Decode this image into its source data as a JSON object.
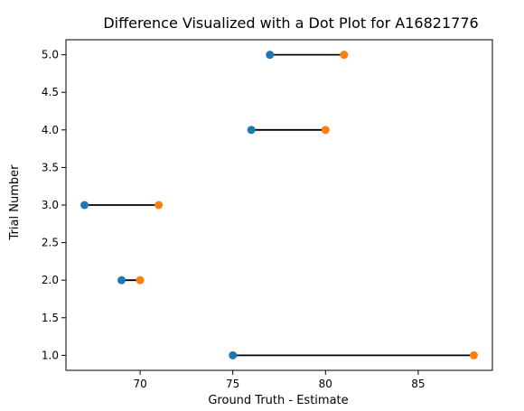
{
  "chart_data": {
    "type": "scatter",
    "title": "Difference Visualized with a Dot Plot for A16821776",
    "xlabel": "Ground Truth - Estimate",
    "ylabel": "Trial Number",
    "xlim": [
      66.0,
      89.0
    ],
    "ylim": [
      0.8,
      5.2
    ],
    "xticks": [
      70,
      75,
      80,
      85
    ],
    "yticks": [
      1.0,
      1.5,
      2.0,
      2.5,
      3.0,
      3.5,
      4.0,
      4.5,
      5.0
    ],
    "xtick_labels": [
      "70",
      "75",
      "80",
      "85"
    ],
    "ytick_labels": [
      "1.0",
      "1.5",
      "2.0",
      "2.5",
      "3.0",
      "3.5",
      "4.0",
      "4.5",
      "5.0"
    ],
    "grid": false,
    "connector_color": "#000000",
    "series": [
      {
        "color": "#1f77b4",
        "points": [
          {
            "x": 75,
            "y": 1
          },
          {
            "x": 69,
            "y": 2
          },
          {
            "x": 67,
            "y": 3
          },
          {
            "x": 76,
            "y": 4
          },
          {
            "x": 77,
            "y": 5
          }
        ]
      },
      {
        "color": "#ff7f0e",
        "points": [
          {
            "x": 88,
            "y": 1
          },
          {
            "x": 70,
            "y": 2
          },
          {
            "x": 71,
            "y": 3
          },
          {
            "x": 80,
            "y": 4
          },
          {
            "x": 81,
            "y": 5
          }
        ]
      }
    ]
  }
}
